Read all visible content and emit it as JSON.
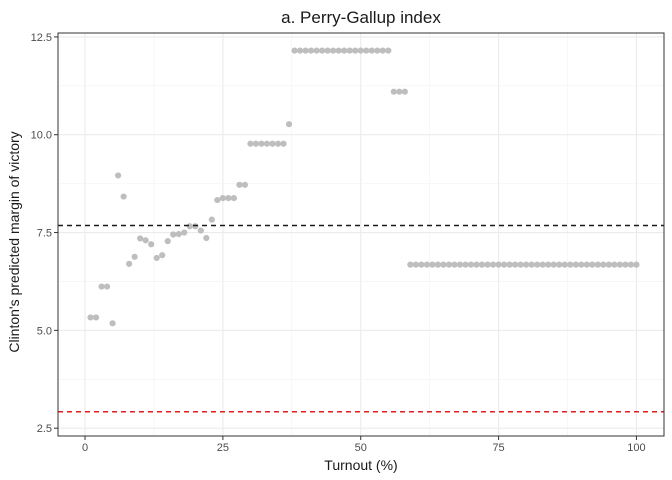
{
  "chart_data": {
    "type": "scatter",
    "title": "a. Perry-Gallup index",
    "xlabel": "Turnout (%)",
    "ylabel": "Clinton's predicted margin of victory",
    "xlim": [
      -4.9,
      105
    ],
    "ylim": [
      2.3,
      12.6
    ],
    "xticks": [
      0,
      25,
      50,
      75,
      100
    ],
    "xtick_labels": [
      "0",
      "25",
      "50",
      "75",
      "100"
    ],
    "yticks": [
      2.5,
      5.0,
      7.5,
      10.0,
      12.5
    ],
    "ytick_labels": [
      "2.5",
      "5.0",
      "7.5",
      "10.0",
      "12.5"
    ],
    "grid": true,
    "point_color": "#bebebe",
    "reference_lines": [
      {
        "y": 7.68,
        "color": "#1a1a1a",
        "style": "dashed"
      },
      {
        "y": 2.92,
        "color": "#e41a1c",
        "style": "dashed"
      }
    ],
    "points": [
      {
        "x": 1,
        "y": 5.33
      },
      {
        "x": 2,
        "y": 5.33
      },
      {
        "x": 3,
        "y": 6.12
      },
      {
        "x": 4,
        "y": 6.12
      },
      {
        "x": 5,
        "y": 5.18
      },
      {
        "x": 6,
        "y": 8.96
      },
      {
        "x": 7,
        "y": 8.42
      },
      {
        "x": 8,
        "y": 6.7
      },
      {
        "x": 9,
        "y": 6.88
      },
      {
        "x": 10,
        "y": 7.35
      },
      {
        "x": 11,
        "y": 7.3
      },
      {
        "x": 12,
        "y": 7.2
      },
      {
        "x": 13,
        "y": 6.85
      },
      {
        "x": 14,
        "y": 6.92
      },
      {
        "x": 15,
        "y": 7.28
      },
      {
        "x": 16,
        "y": 7.45
      },
      {
        "x": 17,
        "y": 7.46
      },
      {
        "x": 18,
        "y": 7.5
      },
      {
        "x": 19,
        "y": 7.66
      },
      {
        "x": 20,
        "y": 7.66
      },
      {
        "x": 21,
        "y": 7.55
      },
      {
        "x": 22,
        "y": 7.36
      },
      {
        "x": 23,
        "y": 7.83
      },
      {
        "x": 24,
        "y": 8.33
      },
      {
        "x": 25,
        "y": 8.38
      },
      {
        "x": 26,
        "y": 8.38
      },
      {
        "x": 27,
        "y": 8.38
      },
      {
        "x": 28,
        "y": 8.72
      },
      {
        "x": 29,
        "y": 8.72
      },
      {
        "x": 30,
        "y": 9.77
      },
      {
        "x": 31,
        "y": 9.77
      },
      {
        "x": 32,
        "y": 9.77
      },
      {
        "x": 33,
        "y": 9.77
      },
      {
        "x": 34,
        "y": 9.77
      },
      {
        "x": 35,
        "y": 9.77
      },
      {
        "x": 36,
        "y": 9.77
      },
      {
        "x": 37,
        "y": 10.27
      },
      {
        "x": 38,
        "y": 12.15
      },
      {
        "x": 39,
        "y": 12.15
      },
      {
        "x": 40,
        "y": 12.15
      },
      {
        "x": 41,
        "y": 12.15
      },
      {
        "x": 42,
        "y": 12.15
      },
      {
        "x": 43,
        "y": 12.15
      },
      {
        "x": 44,
        "y": 12.15
      },
      {
        "x": 45,
        "y": 12.15
      },
      {
        "x": 46,
        "y": 12.15
      },
      {
        "x": 47,
        "y": 12.15
      },
      {
        "x": 48,
        "y": 12.15
      },
      {
        "x": 49,
        "y": 12.15
      },
      {
        "x": 50,
        "y": 12.15
      },
      {
        "x": 51,
        "y": 12.15
      },
      {
        "x": 52,
        "y": 12.15
      },
      {
        "x": 53,
        "y": 12.15
      },
      {
        "x": 54,
        "y": 12.15
      },
      {
        "x": 55,
        "y": 12.15
      },
      {
        "x": 56,
        "y": 11.1
      },
      {
        "x": 57,
        "y": 11.1
      },
      {
        "x": 58,
        "y": 11.1
      },
      {
        "x": 59,
        "y": 6.68
      },
      {
        "x": 60,
        "y": 6.68
      },
      {
        "x": 61,
        "y": 6.68
      },
      {
        "x": 62,
        "y": 6.68
      },
      {
        "x": 63,
        "y": 6.68
      },
      {
        "x": 64,
        "y": 6.68
      },
      {
        "x": 65,
        "y": 6.68
      },
      {
        "x": 66,
        "y": 6.68
      },
      {
        "x": 67,
        "y": 6.68
      },
      {
        "x": 68,
        "y": 6.68
      },
      {
        "x": 69,
        "y": 6.68
      },
      {
        "x": 70,
        "y": 6.68
      },
      {
        "x": 71,
        "y": 6.68
      },
      {
        "x": 72,
        "y": 6.68
      },
      {
        "x": 73,
        "y": 6.68
      },
      {
        "x": 74,
        "y": 6.68
      },
      {
        "x": 75,
        "y": 6.68
      },
      {
        "x": 76,
        "y": 6.68
      },
      {
        "x": 77,
        "y": 6.68
      },
      {
        "x": 78,
        "y": 6.68
      },
      {
        "x": 79,
        "y": 6.68
      },
      {
        "x": 80,
        "y": 6.68
      },
      {
        "x": 81,
        "y": 6.68
      },
      {
        "x": 82,
        "y": 6.68
      },
      {
        "x": 83,
        "y": 6.68
      },
      {
        "x": 84,
        "y": 6.68
      },
      {
        "x": 85,
        "y": 6.68
      },
      {
        "x": 86,
        "y": 6.68
      },
      {
        "x": 87,
        "y": 6.68
      },
      {
        "x": 88,
        "y": 6.68
      },
      {
        "x": 89,
        "y": 6.68
      },
      {
        "x": 90,
        "y": 6.68
      },
      {
        "x": 91,
        "y": 6.68
      },
      {
        "x": 92,
        "y": 6.68
      },
      {
        "x": 93,
        "y": 6.68
      },
      {
        "x": 94,
        "y": 6.68
      },
      {
        "x": 95,
        "y": 6.68
      },
      {
        "x": 96,
        "y": 6.68
      },
      {
        "x": 97,
        "y": 6.68
      },
      {
        "x": 98,
        "y": 6.68
      },
      {
        "x": 99,
        "y": 6.68
      },
      {
        "x": 100,
        "y": 6.68
      }
    ]
  }
}
